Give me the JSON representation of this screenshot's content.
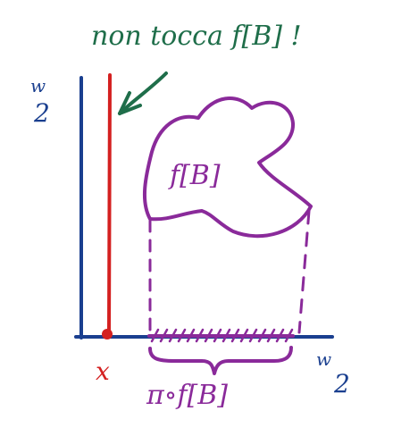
{
  "annotation": {
    "text": "non tocca f[B] !"
  },
  "axes": {
    "vertical_label": "w",
    "vertical_subscript": "2",
    "horizontal_label": "w",
    "horizontal_subscript": "2"
  },
  "marker": {
    "label": "x"
  },
  "set": {
    "label": "f[B]"
  },
  "projection": {
    "label": "π∘f[B]"
  },
  "colors": {
    "axis": "#1a3f8f",
    "red_line": "#d42020",
    "annotation": "#1f6e4a",
    "set": "#8a2a9a"
  }
}
